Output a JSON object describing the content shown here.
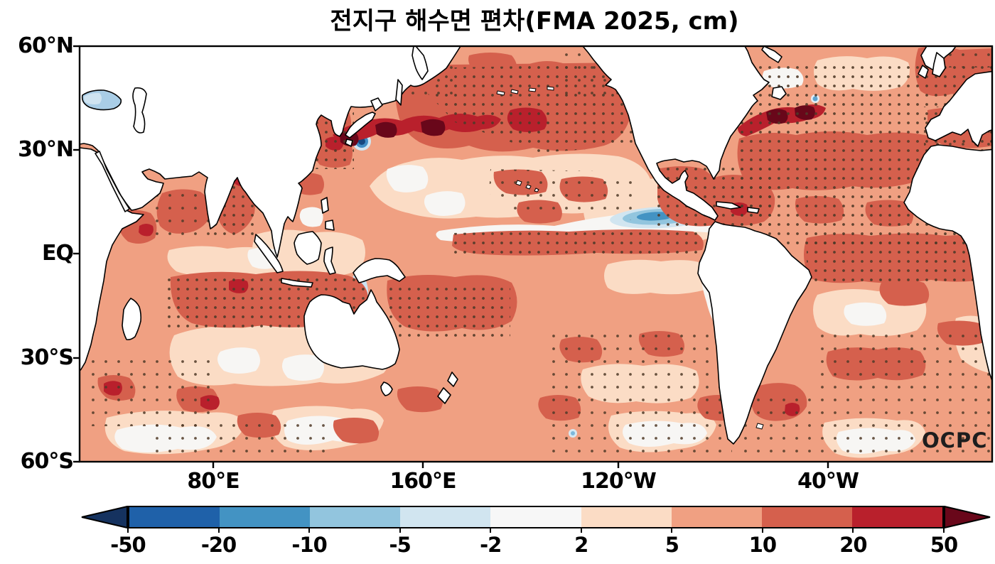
{
  "title": "전지구 해수면 편차(FMA 2025, cm)",
  "map": {
    "y_axis_labels": [
      "60°N",
      "30°N",
      "EQ",
      "30°S",
      "60°S"
    ],
    "x_axis_labels": [
      "80°E",
      "160°E",
      "120°W",
      "40°W"
    ],
    "watermark": "OCPC"
  },
  "colorbar": {
    "tick_labels": [
      "-50",
      "-20",
      "-10",
      "-5",
      "-2",
      "2",
      "5",
      "10",
      "20",
      "50"
    ],
    "segment_colors": [
      "#1f61a9",
      "#4393c3",
      "#92c5de",
      "#d1e5f0",
      "#f7f7f7",
      "#fbdcc5",
      "#f0a082",
      "#d5604d",
      "#b9202c"
    ],
    "arrow_left_color": "#15325f",
    "arrow_right_color": "#69071a"
  },
  "chart_data": {
    "type": "heatmap",
    "title": "전지구 해수면 편차(FMA 2025, cm)",
    "units": "cm",
    "projection": "equirectangular world map, longitudes ~20°E eastward around globe to ~20°E, latitudes 60°S to 60°N",
    "x_ticks": [
      "80°E",
      "160°E",
      "120°W",
      "40°W"
    ],
    "y_ticks": [
      "60°N",
      "30°N",
      "EQ",
      "30°S",
      "60°S"
    ],
    "contour_levels": [
      -50,
      -20,
      -10,
      -5,
      -2,
      2,
      5,
      10,
      20,
      50
    ],
    "palette_low_to_high": [
      "#15325f",
      "#1f61a9",
      "#4393c3",
      "#92c5de",
      "#d1e5f0",
      "#f7f7f7",
      "#fbdcc5",
      "#f0a082",
      "#d5604d",
      "#b9202c",
      "#69071a"
    ],
    "legend_position": "horizontal colorbar below map with open arrow ends",
    "stippling": "small brown dots over many ocean regions (significance stippling)",
    "features": [
      {
        "region": "Most of global ocean",
        "value_cm": "+5 to +10 (salmon base)"
      },
      {
        "region": "Kuroshio extension, N Pacific 140E-180, 30-40N",
        "value_cm": "+20 to >+50 (crimson band with dark maroon cores)"
      },
      {
        "region": "Gulf Stream, NW Atlantic 75W-45W, 35-42N",
        "value_cm": "+20 to >+50 (crimson band with maroon cores)"
      },
      {
        "region": "Eastern tropical Pacific lens ~130W-95W, ~10-13N",
        "value_cm": "-2 to -10 (blue patch ringed by white)"
      },
      {
        "region": "Coastal eddy south of Japan ~138E, 33N",
        "value_cm": "< -20 (small dark blue spot)"
      },
      {
        "region": "Black Sea",
        "value_cm": "-2 to -5 (light blue)"
      },
      {
        "region": "Arafura Sea / Gulf of Carpentaria",
        "value_cm": "-2 to -10 (light blue tongue)"
      },
      {
        "region": "South Indian Ocean 5S-25S",
        "value_cm": "+10 to +20, stippled, small +20-50 core"
      },
      {
        "region": "Equatorial Pacific just north of EQ, 170E-100W",
        "value_cm": "+10 to +20, stippled band"
      },
      {
        "region": "North & tropical Atlantic broad areas",
        "value_cm": "+5 to +20, heavy stippling"
      },
      {
        "region": "Gulf of Mexico / Caribbean",
        "value_cm": "+10 to +20, stippled"
      },
      {
        "region": "Bay of Bengal and Arabian Sea patches",
        "value_cm": "+10 to +20, stippled"
      },
      {
        "region": "Subtropical N Pacific 20-28N and S Indian 30-40S bands",
        "value_cm": "+2 to +5 (pale) with near-zero white cores"
      },
      {
        "region": "Southern Ocean 40-60S",
        "value_cm": "mixed +2 to +20 blobs, few small negative spots"
      },
      {
        "region": "Brazil-Malvinas confluence ~40S",
        "value_cm": "+10 to +20 with small +20-50 core"
      }
    ]
  }
}
